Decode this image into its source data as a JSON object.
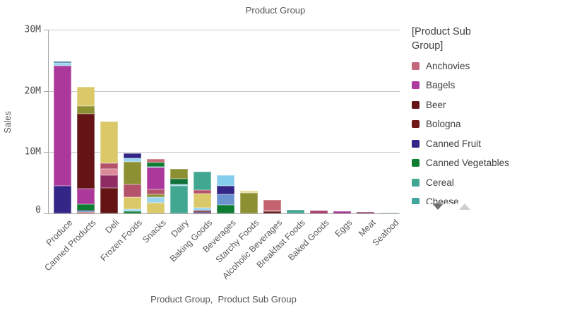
{
  "chart_data": {
    "type": "bar",
    "stacked": true,
    "title": "Product Group",
    "ylabel": "Sales",
    "xlabel": "Product Group,  Product Sub Group",
    "ylim": [
      0,
      30000000
    ],
    "grid": true,
    "legend_position": "right",
    "values_unit": "millions",
    "yticks_top_to_bottom": [
      "30M",
      "20M",
      "10M",
      "0"
    ],
    "categories": [
      "Produce",
      "Canned Products",
      "Deli",
      "Frozen Foods",
      "Snacks",
      "Dairy",
      "Baking Goods",
      "Beverages",
      "Starchy Foods",
      "Alcoholic Beverages",
      "Breakfast Foods",
      "Baked Goods",
      "Eggs",
      "Meat",
      "Seafood"
    ],
    "bars": [
      {
        "category": "Produce",
        "total": 24.9,
        "segments": [
          {
            "color": "#332686",
            "value": 4.5
          },
          {
            "color": "#ab399c",
            "value": 19.7
          },
          {
            "color": "#9bd4ee",
            "value": 0.5
          },
          {
            "color": "#31719f",
            "value": 0.2
          }
        ]
      },
      {
        "category": "Canned Products",
        "total": 20.8,
        "segments": [
          {
            "color": "#c96b77",
            "value": 0.2
          },
          {
            "color": "#6b93cf",
            "value": 0.15
          },
          {
            "color": "#332686",
            "value": 0.15
          },
          {
            "color": "#0e7d32",
            "value": 1.0
          },
          {
            "color": "#ab399c",
            "value": 2.55
          },
          {
            "color": "#641414",
            "value": 12.35
          },
          {
            "color": "#8d8f33",
            "value": 1.2
          },
          {
            "color": "#dbc869",
            "value": 3.2
          }
        ]
      },
      {
        "category": "Deli",
        "total": 15.05,
        "segments": [
          {
            "color": "#641414",
            "value": 4.2
          },
          {
            "color": "#8e2c63",
            "value": 2.1
          },
          {
            "color": "#d98a96",
            "value": 0.95
          },
          {
            "color": "#b5526b",
            "value": 0.95
          },
          {
            "color": "#dbc869",
            "value": 6.85
          }
        ]
      },
      {
        "category": "Frozen Foods",
        "total": 9.85,
        "segments": [
          {
            "color": "#0e7d32",
            "value": 0.3
          },
          {
            "color": "#9bd4ee",
            "value": 0.35
          },
          {
            "color": "#dbc869",
            "value": 2.0
          },
          {
            "color": "#b5526b",
            "value": 2.1
          },
          {
            "color": "#8d8f33",
            "value": 3.75
          },
          {
            "color": "#9bd4ee",
            "value": 0.5
          },
          {
            "color": "#332686",
            "value": 0.85
          }
        ]
      },
      {
        "category": "Snacks",
        "total": 8.95,
        "segments": [
          {
            "color": "#dbc869",
            "value": 1.7
          },
          {
            "color": "#9bd4ee",
            "value": 1.0
          },
          {
            "color": "#8d8f33",
            "value": 0.45
          },
          {
            "color": "#b5526b",
            "value": 0.85
          },
          {
            "color": "#ab399c",
            "value": 3.5
          },
          {
            "color": "#9bd4ee",
            "value": 0.2
          },
          {
            "color": "#0e7d32",
            "value": 0.6
          },
          {
            "color": "#c96b77",
            "value": 0.65
          }
        ]
      },
      {
        "category": "Dairy",
        "total": 7.3,
        "segments": [
          {
            "color": "#42a791",
            "value": 4.5
          },
          {
            "color": "#9bd4ee",
            "value": 0.2
          },
          {
            "color": "#11703a",
            "value": 1.0
          },
          {
            "color": "#8d8f33",
            "value": 1.6
          }
        ]
      },
      {
        "category": "Baking Goods",
        "total": 6.9,
        "segments": [
          {
            "color": "#8e2c63",
            "value": 0.1
          },
          {
            "color": "#332686",
            "value": 0.15
          },
          {
            "color": "#641414",
            "value": 0.2
          },
          {
            "color": "#9bd4ee",
            "value": 0.45
          },
          {
            "color": "#dbc869",
            "value": 2.4
          },
          {
            "color": "#b5526b",
            "value": 0.5
          },
          {
            "color": "#42a791",
            "value": 3.1
          }
        ]
      },
      {
        "category": "Beverages",
        "total": 6.3,
        "segments": [
          {
            "color": "#0e7d32",
            "value": 1.4
          },
          {
            "color": "#6b93cf",
            "value": 1.75
          },
          {
            "color": "#332686",
            "value": 1.4
          },
          {
            "color": "#85cdec",
            "value": 1.75
          }
        ]
      },
      {
        "category": "Starchy Foods",
        "total": 3.75,
        "segments": [
          {
            "color": "#8d8f33",
            "value": 3.4
          },
          {
            "color": "#e6d894",
            "value": 0.35
          }
        ]
      },
      {
        "category": "Alcoholic Beverages",
        "total": 2.25,
        "segments": [
          {
            "color": "#641414",
            "value": 0.35
          },
          {
            "color": "#d98a96",
            "value": 0.1
          },
          {
            "color": "#c4626f",
            "value": 1.8
          }
        ]
      },
      {
        "category": "Breakfast Foods",
        "total": 0.6,
        "segments": [
          {
            "color": "#42a791",
            "value": 0.6
          }
        ]
      },
      {
        "category": "Baked Goods",
        "total": 0.45,
        "segments": [
          {
            "color": "#a73a6a",
            "value": 0.45
          }
        ]
      },
      {
        "category": "Eggs",
        "total": 0.35,
        "segments": [
          {
            "color": "#a02c8c",
            "value": 0.35
          }
        ]
      },
      {
        "category": "Meat",
        "total": 0.18,
        "segments": [
          {
            "color": "#8c2f62",
            "value": 0.18
          }
        ]
      },
      {
        "category": "Seafood",
        "total": 0.15,
        "segments": [
          {
            "color": "#a9d8c7",
            "value": 0.15
          }
        ]
      }
    ]
  },
  "legend": {
    "title": "[Product Sub Group]",
    "items": [
      {
        "label": "Anchovies",
        "color": "#c4677a"
      },
      {
        "label": "Bagels",
        "color": "#ad3a9e"
      },
      {
        "label": "Beer",
        "color": "#641414"
      },
      {
        "label": "Bologna",
        "color": "#701818"
      },
      {
        "label": "Canned Fruit",
        "color": "#332686"
      },
      {
        "label": "Canned Vegetables",
        "color": "#0e7d32"
      },
      {
        "label": "Cereal",
        "color": "#42a791"
      },
      {
        "label": "Cheese",
        "color": "#41a79c"
      }
    ],
    "scroll_down_icon": "triangle-down",
    "scroll_up_icon": "triangle-up"
  }
}
